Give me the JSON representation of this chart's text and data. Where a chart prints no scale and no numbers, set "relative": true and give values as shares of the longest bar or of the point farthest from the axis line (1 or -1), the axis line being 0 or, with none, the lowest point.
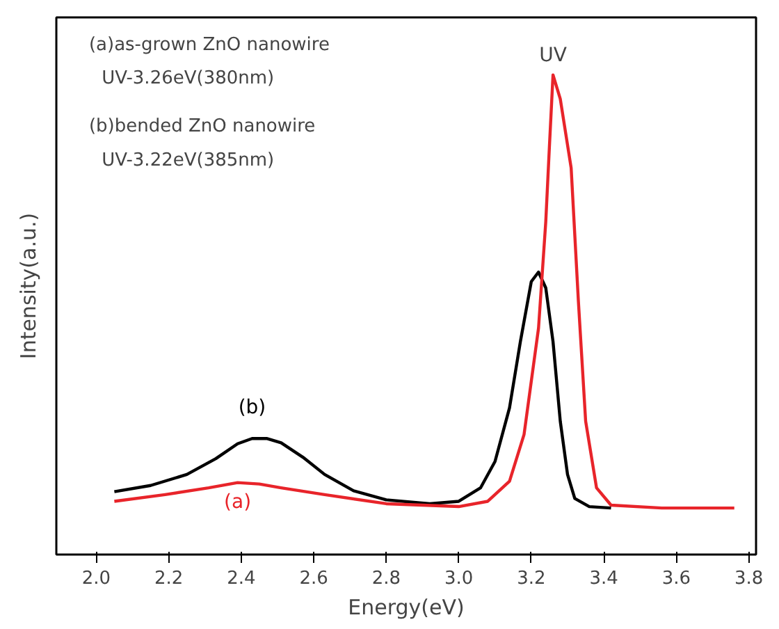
{
  "chart_data": {
    "type": "line",
    "xlabel": "Energy(eV)",
    "ylabel": "Intensity(a.u.)",
    "relative": true,
    "xlim": [
      1.89,
      3.82
    ],
    "xticks": [
      {
        "value": 2.0,
        "label": "2.0"
      },
      2.2,
      2.4,
      2.6,
      2.8,
      {
        "value": 3.0,
        "label": "3.0"
      },
      3.2,
      3.4,
      3.6,
      3.8
    ],
    "tick_labels": "x",
    "grid": false,
    "marker": "none",
    "line_style": "solid",
    "annotations": [
      "(a)as-grown ZnO nanowire",
      "UV-3.26eV(380nm)",
      "(b)bended ZnO nanowire",
      "UV-3.22eV(385nm)",
      {
        "text": "UV",
        "x": 3.26,
        "y": 1.0
      }
    ],
    "series": [
      {
        "name": "(b)",
        "color": "#000000",
        "x": [
          2.05,
          2.15,
          2.25,
          2.33,
          2.39,
          2.43,
          2.47,
          2.51,
          2.57,
          2.63,
          2.71,
          2.8,
          2.92,
          3.0,
          3.06,
          3.1,
          3.14,
          3.17,
          3.2,
          3.22,
          3.24,
          3.26,
          3.28,
          3.3,
          3.32,
          3.36,
          3.42
        ],
        "values": [
          0.131,
          0.144,
          0.167,
          0.2,
          0.231,
          0.242,
          0.242,
          0.233,
          0.203,
          0.167,
          0.133,
          0.114,
          0.106,
          0.111,
          0.139,
          0.194,
          0.306,
          0.444,
          0.569,
          0.589,
          0.556,
          0.444,
          0.278,
          0.167,
          0.117,
          0.1,
          0.097
        ]
      },
      {
        "name": "(a)",
        "color": "#e8242a",
        "x": [
          2.05,
          2.19,
          2.31,
          2.39,
          2.45,
          2.51,
          2.63,
          2.8,
          3.0,
          3.08,
          3.14,
          3.18,
          3.22,
          3.24,
          3.25,
          3.26,
          3.28,
          3.31,
          3.33,
          3.35,
          3.38,
          3.42,
          3.56,
          3.76
        ],
        "values": [
          0.111,
          0.125,
          0.139,
          0.15,
          0.147,
          0.139,
          0.125,
          0.106,
          0.1,
          0.111,
          0.153,
          0.25,
          0.472,
          0.694,
          0.85,
          1.0,
          0.95,
          0.806,
          0.528,
          0.278,
          0.139,
          0.103,
          0.097,
          0.097
        ]
      }
    ]
  }
}
